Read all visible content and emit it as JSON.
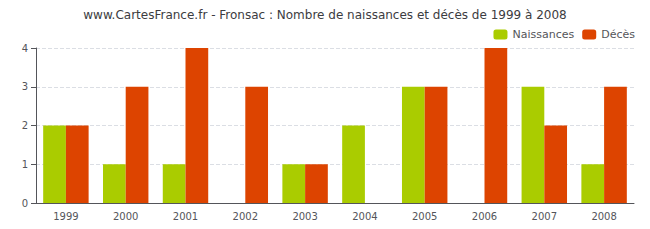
{
  "chart_data": {
    "type": "bar",
    "title": "www.CartesFrance.fr - Fronsac : Nombre de naissances et décès de 1999 à 2008",
    "categories": [
      "1999",
      "2000",
      "2001",
      "2002",
      "2003",
      "2004",
      "2005",
      "2006",
      "2007",
      "2008"
    ],
    "series": [
      {
        "name": "Naissances",
        "color": "#aacc00",
        "values": [
          2,
          1,
          1,
          0,
          1,
          2,
          3,
          0,
          3,
          1
        ]
      },
      {
        "name": "Décès",
        "color": "#dd4400",
        "values": [
          2,
          3,
          4,
          3,
          1,
          0,
          3,
          4,
          2,
          3
        ]
      }
    ],
    "ylim": [
      0,
      4
    ],
    "yticks": [
      0,
      1,
      2,
      3,
      4
    ],
    "grid": true,
    "legend": "upper right"
  }
}
